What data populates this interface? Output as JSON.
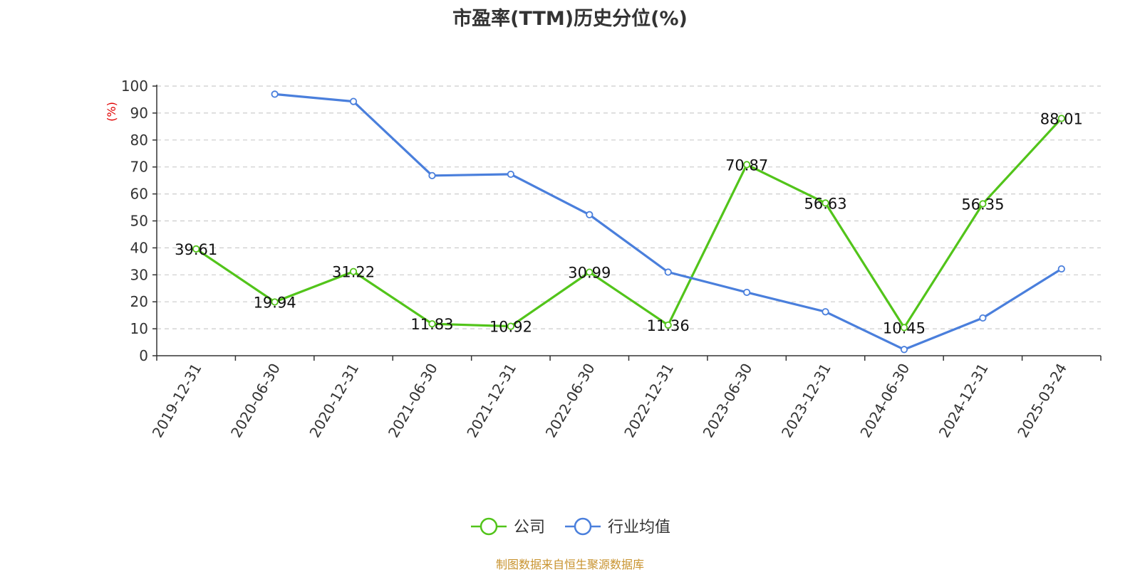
{
  "chart_data": {
    "type": "line",
    "title": "市盈率(TTM)历史分位(%)",
    "ylabel": "(%)",
    "ylim": [
      0,
      100
    ],
    "yticks": [
      0,
      10,
      20,
      30,
      40,
      50,
      60,
      70,
      80,
      90,
      100
    ],
    "categories": [
      "2019-12-31",
      "2020-06-30",
      "2020-12-31",
      "2021-06-30",
      "2021-12-31",
      "2022-06-30",
      "2022-12-31",
      "2023-06-30",
      "2023-12-31",
      "2024-06-30",
      "2024-12-31",
      "2025-03-24"
    ],
    "grid": true,
    "legend_position": "bottom-center",
    "series": [
      {
        "name": "公司",
        "color": "#52c41a",
        "values": [
          39.61,
          19.94,
          31.22,
          11.83,
          10.92,
          30.99,
          11.36,
          70.87,
          56.63,
          10.45,
          56.35,
          88.01
        ],
        "labels": [
          "39.61",
          "19.94",
          "31.22",
          "11.83",
          "10.92",
          "30.99",
          "11.36",
          "70.87",
          "56.63",
          "10.45",
          "56.35",
          "88.01"
        ]
      },
      {
        "name": "行业均值",
        "color": "#4a7fdc",
        "values": [
          null,
          97.0,
          94.3,
          66.8,
          67.3,
          52.3,
          31.0,
          23.5,
          16.3,
          2.3,
          14.0,
          32.2
        ]
      }
    ]
  },
  "source_text": "制图数据来自恒生聚源数据库"
}
